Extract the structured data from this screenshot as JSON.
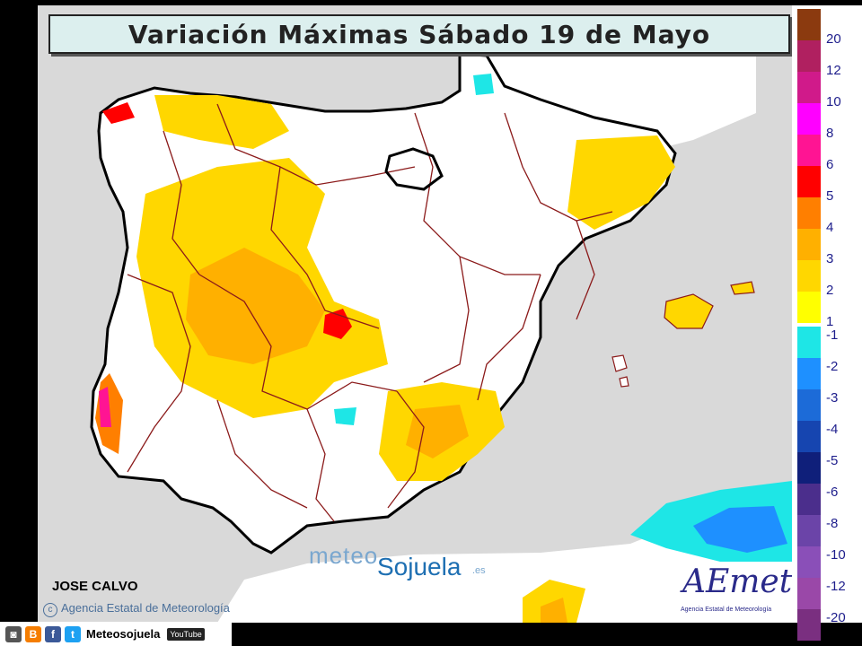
{
  "title": "Variación Máximas  Sábado 19 de Mayo",
  "author": "JOSE CALVO",
  "agency_credit": "Agencia Estatal de Meteorología",
  "watermark": {
    "part1": "meteo",
    "part2": "Sojuela",
    "suffix": ".es"
  },
  "aemet_logo": {
    "name": "AEmet",
    "subtitle": "Agencia Estatal de Meteorología"
  },
  "social": {
    "handle": "Meteosojuela",
    "youtube": "YouTube",
    "icons": [
      "instagram-icon",
      "blogger-icon",
      "facebook-icon",
      "twitter-icon",
      "youtube-icon"
    ]
  },
  "legend": {
    "positive": [
      {
        "label": "20",
        "color": "#8b3a0f"
      },
      {
        "label": "12",
        "color": "#b02060"
      },
      {
        "label": "10",
        "color": "#d01a8a"
      },
      {
        "label": "8",
        "color": "#ff00ff"
      },
      {
        "label": "6",
        "color": "#ff1493"
      },
      {
        "label": "5",
        "color": "#ff0000"
      },
      {
        "label": "4",
        "color": "#ff7f00"
      },
      {
        "label": "3",
        "color": "#ffb000"
      },
      {
        "label": "2",
        "color": "#ffd700"
      },
      {
        "label": "1",
        "color": "#ffff00"
      }
    ],
    "negative": [
      {
        "label": "-1",
        "color": "#1ee6e6"
      },
      {
        "label": "-2",
        "color": "#1e90ff"
      },
      {
        "label": "-3",
        "color": "#1c6bd8"
      },
      {
        "label": "-4",
        "color": "#1645b0"
      },
      {
        "label": "-5",
        "color": "#0f1f7a"
      },
      {
        "label": "-6",
        "color": "#4b2e8c"
      },
      {
        "label": "-8",
        "color": "#6b44a8"
      },
      {
        "label": "-10",
        "color": "#8a4fb8"
      },
      {
        "label": "-12",
        "color": "#9a48a8"
      },
      {
        "label": "-20",
        "color": "#7a2f80"
      }
    ]
  },
  "colors": {
    "land": "#ffffff",
    "sea": "#d9d9d9",
    "coast": "#000000",
    "borders": "#8b1a1a"
  }
}
